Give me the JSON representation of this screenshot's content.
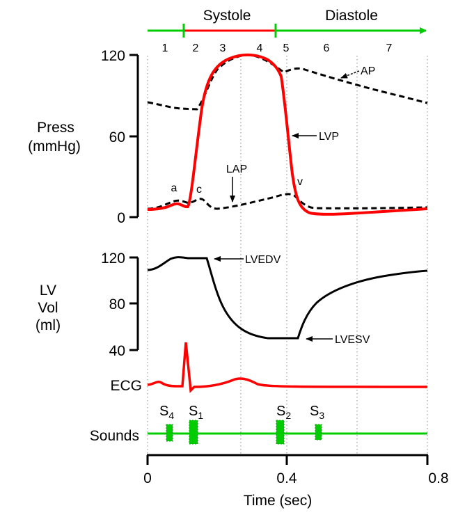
{
  "phase_bar": {
    "systole": "Systole",
    "diastole": "Diastole",
    "phases": [
      "1",
      "2",
      "3",
      "4",
      "5",
      "6",
      "7"
    ],
    "colors": {
      "systole": "#ff0000",
      "diastole": "#00cc00"
    }
  },
  "pressure_panel": {
    "ylabel_1": "Press",
    "ylabel_2": "(mmHg)",
    "ticks": [
      "120",
      "60",
      "0"
    ],
    "curve_labels": {
      "ap": "AP",
      "lvp": "LVP",
      "lap": "LAP",
      "a": "a",
      "c": "c",
      "v": "v"
    }
  },
  "volume_panel": {
    "ylabel_1": "LV",
    "ylabel_2": "Vol",
    "ylabel_3": "(ml)",
    "ticks": [
      "120",
      "80",
      "40"
    ],
    "curve_labels": {
      "lvedv": "LVEDV",
      "lvesv": "LVESV"
    }
  },
  "ecg": {
    "label": "ECG"
  },
  "sounds": {
    "label": "Sounds",
    "s4": {
      "base": "S",
      "sub": "4"
    },
    "s1": {
      "base": "S",
      "sub": "1"
    },
    "s2": {
      "base": "S",
      "sub": "2"
    },
    "s3": {
      "base": "S",
      "sub": "3"
    }
  },
  "x_axis": {
    "ticks": [
      "0",
      "0.4",
      "0.8"
    ],
    "label": "Time (sec)"
  }
}
